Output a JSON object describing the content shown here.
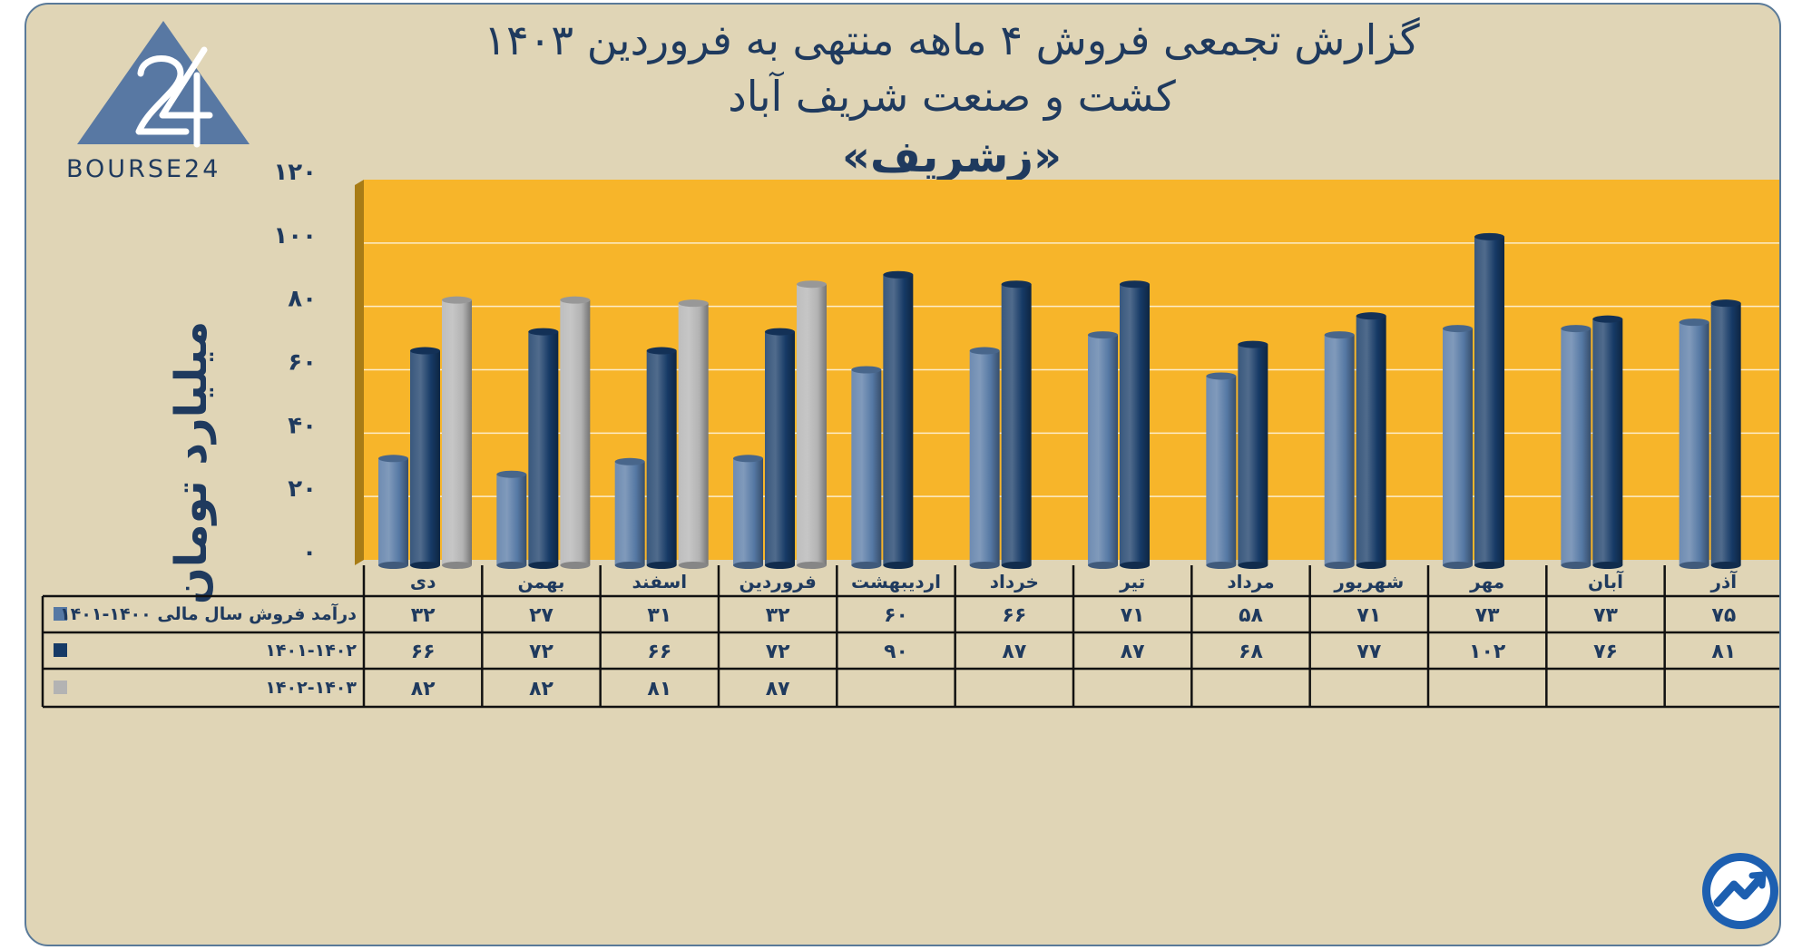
{
  "header": {
    "title_line1": "گزارش تجمعی فروش ۴ ماهه منتهی به فروردین ۱۴۰۳",
    "title_line2": "کشت و صنعت شریف آباد",
    "title_line3": "«زشریف»"
  },
  "logo": {
    "text": "BOURSE24"
  },
  "colors": {
    "plot_bg": "#f7b52a",
    "plot_side": "#a87c16",
    "series": [
      "#5578a4",
      "#163a66",
      "#b3b3b3"
    ]
  },
  "chart_data": {
    "type": "bar",
    "ylabel": "میلیارد تومان",
    "ylim": [
      0,
      120
    ],
    "yticks": [
      0,
      20,
      40,
      60,
      80,
      100,
      120
    ],
    "ytick_labels": [
      "۰",
      "۲۰",
      "۴۰",
      "۶۰",
      "۸۰",
      "۱۰۰",
      "۱۲۰"
    ],
    "categories": [
      "آذر",
      "آبان",
      "مهر",
      "شهریور",
      "مرداد",
      "تیر",
      "خرداد",
      "اردیبهشت",
      "فروردین",
      "اسفند",
      "بهمن",
      "دی"
    ],
    "series": [
      {
        "name": "درآمد فروش سال مالی ۱۴۰۰-۱۴۰۱",
        "values": [
          75,
          73,
          73,
          71,
          58,
          71,
          66,
          60,
          32,
          31,
          27,
          32
        ],
        "labels": [
          "۷۵",
          "۷۳",
          "۷۳",
          "۷۱",
          "۵۸",
          "۷۱",
          "۶۶",
          "۶۰",
          "۳۲",
          "۳۱",
          "۲۷",
          "۳۲"
        ]
      },
      {
        "name": "۱۴۰۱-۱۴۰۲",
        "values": [
          81,
          76,
          102,
          77,
          68,
          87,
          87,
          90,
          72,
          66,
          72,
          66
        ],
        "labels": [
          "۸۱",
          "۷۶",
          "۱۰۲",
          "۷۷",
          "۶۸",
          "۸۷",
          "۸۷",
          "۹۰",
          "۷۲",
          "۶۶",
          "۷۲",
          "۶۶"
        ]
      },
      {
        "name": "۱۴۰۲-۱۴۰۳",
        "values": [
          null,
          null,
          null,
          null,
          null,
          null,
          null,
          null,
          87,
          81,
          82,
          82
        ],
        "labels": [
          "",
          "",
          "",
          "",
          "",
          "",
          "",
          "",
          "۸۷",
          "۸۱",
          "۸۲",
          "۸۲"
        ]
      }
    ]
  }
}
